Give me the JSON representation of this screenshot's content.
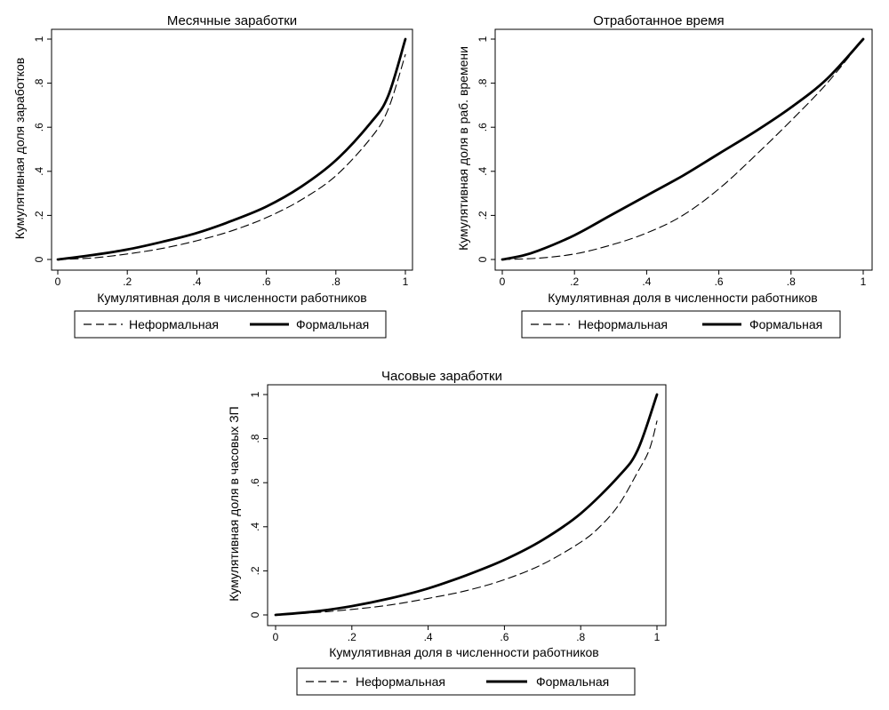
{
  "chart_data": [
    {
      "type": "line",
      "title": "Месячные заработки",
      "xlabel": "Кумулятивная доля в численности работников",
      "ylabel": "Кумулятивная доля заработков",
      "xlim": [
        0,
        1
      ],
      "ylim": [
        0,
        1
      ],
      "xticks": [
        "0",
        ".2",
        ".4",
        ".6",
        ".8",
        "1"
      ],
      "yticks": [
        "0",
        ".2",
        ".4",
        ".6",
        ".8",
        "1"
      ],
      "grid": false,
      "legend": "bottom",
      "series": [
        {
          "name": "Неформальная",
          "style": "dashed",
          "x": [
            0,
            0.1,
            0.2,
            0.3,
            0.4,
            0.5,
            0.6,
            0.7,
            0.8,
            0.9,
            0.95,
            1
          ],
          "y": [
            0,
            0.007,
            0.025,
            0.05,
            0.085,
            0.13,
            0.19,
            0.27,
            0.38,
            0.55,
            0.68,
            0.93
          ]
        },
        {
          "name": "Формальная",
          "style": "solid",
          "x": [
            0,
            0.1,
            0.2,
            0.3,
            0.4,
            0.5,
            0.6,
            0.7,
            0.8,
            0.9,
            0.95,
            1
          ],
          "y": [
            0,
            0.02,
            0.045,
            0.08,
            0.12,
            0.175,
            0.24,
            0.33,
            0.45,
            0.62,
            0.74,
            1
          ]
        }
      ]
    },
    {
      "type": "line",
      "title": "Отработанное время",
      "xlabel": "Кумулятивная доля в численности работников",
      "ylabel": "Кумулятивная доля в раб. времени",
      "xlim": [
        0,
        1
      ],
      "ylim": [
        0,
        1
      ],
      "xticks": [
        "0",
        ".2",
        ".4",
        ".6",
        ".8",
        "1"
      ],
      "yticks": [
        "0",
        ".2",
        ".4",
        ".6",
        ".8",
        "1"
      ],
      "grid": false,
      "legend": "bottom",
      "series": [
        {
          "name": "Неформальная",
          "style": "dashed",
          "x": [
            0,
            0.1,
            0.2,
            0.3,
            0.4,
            0.5,
            0.6,
            0.7,
            0.8,
            0.9,
            1
          ],
          "y": [
            0,
            0.006,
            0.025,
            0.065,
            0.12,
            0.2,
            0.32,
            0.47,
            0.63,
            0.8,
            1
          ]
        },
        {
          "name": "Формальная",
          "style": "solid",
          "x": [
            0,
            0.05,
            0.1,
            0.2,
            0.3,
            0.4,
            0.5,
            0.6,
            0.7,
            0.8,
            0.9,
            1
          ],
          "y": [
            0,
            0.015,
            0.04,
            0.11,
            0.2,
            0.29,
            0.38,
            0.48,
            0.58,
            0.69,
            0.82,
            1
          ]
        }
      ]
    },
    {
      "type": "line",
      "title": "Часовые заработки",
      "xlabel": "Кумулятивная доля в численности работников",
      "ylabel": "Кумулятивная доля в часовых ЗП",
      "xlim": [
        0,
        1
      ],
      "ylim": [
        0,
        1
      ],
      "xticks": [
        "0",
        ".2",
        ".4",
        ".6",
        ".8",
        "1"
      ],
      "yticks": [
        "0",
        ".2",
        ".4",
        ".6",
        ".8",
        "1"
      ],
      "grid": false,
      "legend": "bottom",
      "series": [
        {
          "name": "Неформальная",
          "style": "dashed",
          "x": [
            0,
            0.1,
            0.2,
            0.3,
            0.4,
            0.5,
            0.6,
            0.7,
            0.8,
            0.85,
            0.9,
            0.95,
            0.98,
            1
          ],
          "y": [
            0,
            0.01,
            0.025,
            0.045,
            0.075,
            0.11,
            0.16,
            0.23,
            0.33,
            0.4,
            0.5,
            0.65,
            0.75,
            0.88
          ]
        },
        {
          "name": "Формальная",
          "style": "solid",
          "x": [
            0,
            0.1,
            0.2,
            0.3,
            0.4,
            0.5,
            0.6,
            0.7,
            0.8,
            0.9,
            0.95,
            1
          ],
          "y": [
            0,
            0.015,
            0.04,
            0.075,
            0.12,
            0.18,
            0.25,
            0.34,
            0.46,
            0.63,
            0.75,
            1
          ]
        }
      ]
    }
  ]
}
